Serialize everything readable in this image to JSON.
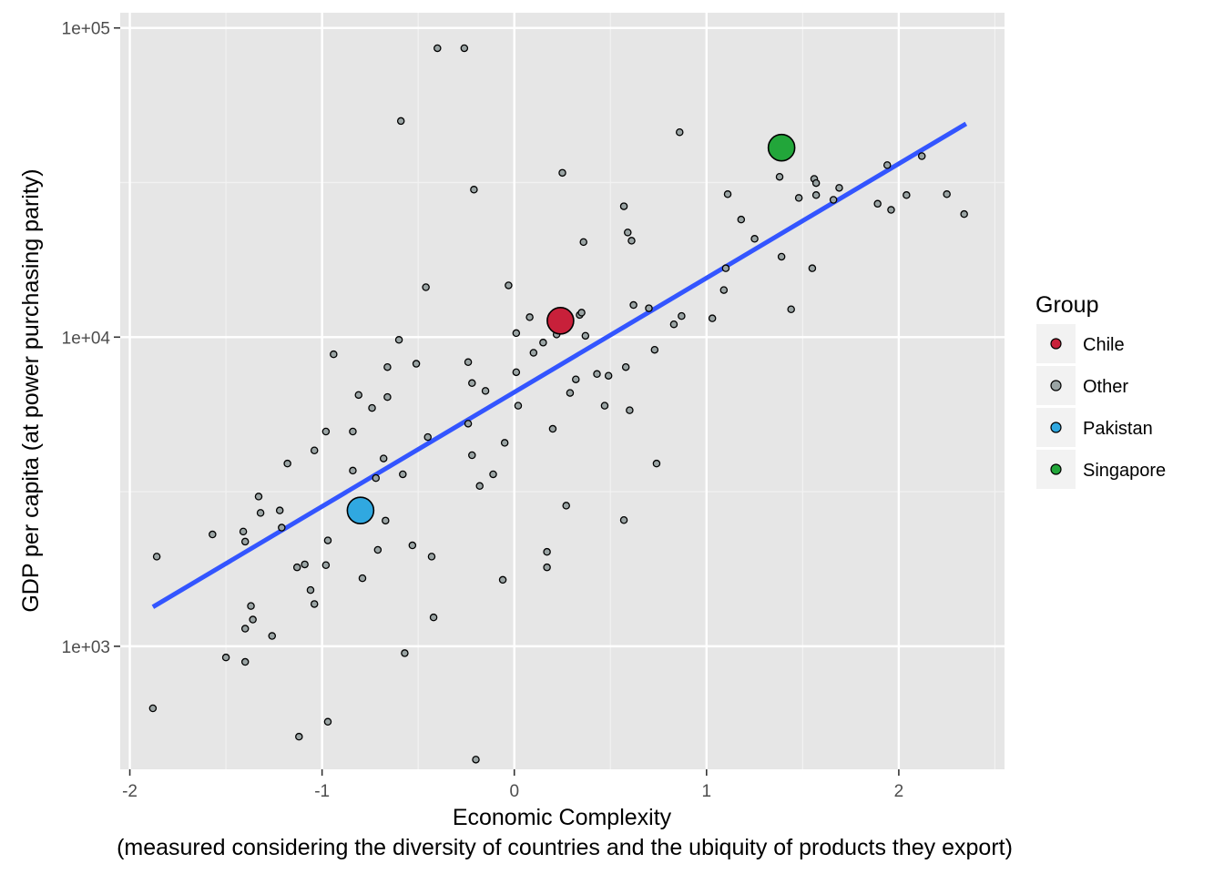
{
  "chart_data": {
    "type": "scatter",
    "title": "",
    "xlabel": "Economic Complexity",
    "xlabel_sub": "(measured considering the diversity of countries and the ubiquity of products they export)",
    "ylabel": "GDP per capita (at power purchasing parity)",
    "x_scale": "linear",
    "y_scale": "log10",
    "xlim": [
      -2.05,
      2.55
    ],
    "ylim": [
      400,
      112000
    ],
    "x_ticks": [
      -2,
      -1,
      0,
      1,
      2
    ],
    "x_tick_labels": [
      "-2",
      "-1",
      "0",
      "1",
      "2"
    ],
    "y_ticks": [
      1000,
      10000,
      100000
    ],
    "y_tick_labels": [
      "1e+03",
      "1e+04",
      "1e+05"
    ],
    "grid": true,
    "legend": {
      "title": "Group",
      "position": "right",
      "entries": [
        {
          "label": "Chile",
          "color": "#c8203a"
        },
        {
          "label": "Other",
          "color": "#9aa4a4"
        },
        {
          "label": "Pakistan",
          "color": "#30a8e0"
        },
        {
          "label": "Singapore",
          "color": "#22a63a"
        }
      ]
    },
    "trend_line": {
      "color": "#3355ff",
      "x": [
        -1.88,
        2.35
      ],
      "y": [
        1340,
        49000
      ]
    },
    "series": [
      {
        "name": "Chile",
        "color": "#c8203a",
        "points": [
          [
            0.24,
            11300
          ]
        ]
      },
      {
        "name": "Pakistan",
        "color": "#30a8e0",
        "points": [
          [
            -0.8,
            2750
          ]
        ]
      },
      {
        "name": "Singapore",
        "color": "#22a63a",
        "points": [
          [
            1.39,
            41000
          ]
        ]
      },
      {
        "name": "Other",
        "color": "#9aa4a4",
        "points": [
          [
            -1.88,
            630
          ],
          [
            -1.86,
            1950
          ],
          [
            -1.57,
            2300
          ],
          [
            -1.5,
            920
          ],
          [
            -1.41,
            2350
          ],
          [
            -1.4,
            2180
          ],
          [
            -1.4,
            890
          ],
          [
            -1.4,
            1140
          ],
          [
            -1.37,
            1350
          ],
          [
            -1.36,
            1220
          ],
          [
            -1.33,
            3050
          ],
          [
            -1.32,
            2700
          ],
          [
            -1.26,
            1080
          ],
          [
            -1.22,
            2750
          ],
          [
            -1.21,
            2420
          ],
          [
            -1.18,
            3900
          ],
          [
            -1.13,
            1800
          ],
          [
            -1.12,
            510
          ],
          [
            -1.09,
            1840
          ],
          [
            -1.06,
            1520
          ],
          [
            -1.04,
            1370
          ],
          [
            -1.04,
            4300
          ],
          [
            -0.98,
            4950
          ],
          [
            -0.98,
            1830
          ],
          [
            -0.97,
            2200
          ],
          [
            -0.97,
            570
          ],
          [
            -0.94,
            8800
          ],
          [
            -0.84,
            3700
          ],
          [
            -0.84,
            4950
          ],
          [
            -0.81,
            6500
          ],
          [
            -0.79,
            1660
          ],
          [
            -0.74,
            5900
          ],
          [
            -0.72,
            3500
          ],
          [
            -0.71,
            2050
          ],
          [
            -0.68,
            4050
          ],
          [
            -0.67,
            2550
          ],
          [
            -0.66,
            8000
          ],
          [
            -0.66,
            6400
          ],
          [
            -0.6,
            9800
          ],
          [
            -0.59,
            50000
          ],
          [
            -0.58,
            3600
          ],
          [
            -0.57,
            950
          ],
          [
            -0.53,
            2120
          ],
          [
            -0.51,
            8200
          ],
          [
            -0.46,
            14500
          ],
          [
            -0.45,
            4750
          ],
          [
            -0.43,
            1950
          ],
          [
            -0.42,
            1240
          ],
          [
            -0.4,
            86000
          ],
          [
            -0.26,
            86000
          ],
          [
            -0.24,
            5250
          ],
          [
            -0.24,
            8300
          ],
          [
            -0.22,
            7100
          ],
          [
            -0.22,
            4150
          ],
          [
            -0.21,
            30000
          ],
          [
            -0.2,
            430
          ],
          [
            -0.18,
            3300
          ],
          [
            -0.15,
            6700
          ],
          [
            -0.11,
            3600
          ],
          [
            -0.06,
            1640
          ],
          [
            -0.05,
            4550
          ],
          [
            -0.03,
            14700
          ],
          [
            0.01,
            10300
          ],
          [
            0.01,
            7700
          ],
          [
            0.02,
            6000
          ],
          [
            0.08,
            11600
          ],
          [
            0.1,
            8900
          ],
          [
            0.15,
            9600
          ],
          [
            0.17,
            2020
          ],
          [
            0.17,
            1800
          ],
          [
            0.2,
            5050
          ],
          [
            0.22,
            10200
          ],
          [
            0.24,
            11000
          ],
          [
            0.25,
            34000
          ],
          [
            0.27,
            2850
          ],
          [
            0.29,
            6600
          ],
          [
            0.32,
            7300
          ],
          [
            0.34,
            11800
          ],
          [
            0.35,
            12000
          ],
          [
            0.36,
            20300
          ],
          [
            0.37,
            10100
          ],
          [
            0.43,
            7600
          ],
          [
            0.47,
            6000
          ],
          [
            0.49,
            7500
          ],
          [
            0.57,
            2560
          ],
          [
            0.57,
            26500
          ],
          [
            0.58,
            8000
          ],
          [
            0.59,
            21800
          ],
          [
            0.6,
            5800
          ],
          [
            0.61,
            20500
          ],
          [
            0.62,
            12700
          ],
          [
            0.7,
            12400
          ],
          [
            0.73,
            9100
          ],
          [
            0.74,
            3900
          ],
          [
            0.83,
            11000
          ],
          [
            0.86,
            46000
          ],
          [
            0.87,
            11700
          ],
          [
            1.03,
            11500
          ],
          [
            1.09,
            14200
          ],
          [
            1.1,
            16700
          ],
          [
            1.11,
            29000
          ],
          [
            1.18,
            24000
          ],
          [
            1.25,
            20800
          ],
          [
            1.38,
            33000
          ],
          [
            1.39,
            18200
          ],
          [
            1.44,
            12300
          ],
          [
            1.48,
            28200
          ],
          [
            1.55,
            16700
          ],
          [
            1.56,
            32500
          ],
          [
            1.57,
            31500
          ],
          [
            1.57,
            28800
          ],
          [
            1.66,
            27800
          ],
          [
            1.69,
            30400
          ],
          [
            1.89,
            27000
          ],
          [
            1.94,
            36000
          ],
          [
            1.96,
            25800
          ],
          [
            2.04,
            28800
          ],
          [
            2.12,
            38500
          ],
          [
            2.25,
            29000
          ],
          [
            2.34,
            25000
          ]
        ]
      }
    ]
  }
}
